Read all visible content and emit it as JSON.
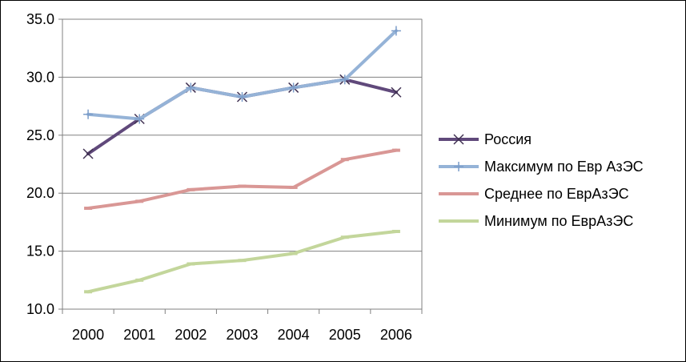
{
  "chart_data": {
    "type": "line",
    "title": "",
    "xlabel": "",
    "ylabel": "",
    "categories": [
      "2000",
      "2001",
      "2002",
      "2003",
      "2004",
      "2005",
      "2006"
    ],
    "ylim": [
      10,
      35
    ],
    "yticks": [
      "10.0",
      "15.0",
      "20.0",
      "25.0",
      "30.0",
      "35.0"
    ],
    "grid": true,
    "legend_position": "right",
    "series": [
      {
        "name": "Россия",
        "values": [
          23.4,
          26.4,
          29.1,
          28.3,
          29.1,
          29.8,
          28.7
        ],
        "color": "#60497b",
        "marker": "x"
      },
      {
        "name": "Максимум по Евр АзЭС",
        "values": [
          26.8,
          26.4,
          29.1,
          28.3,
          29.1,
          29.8,
          34.0
        ],
        "color": "#95b3d7",
        "marker": "plus"
      },
      {
        "name": "Среднее по ЕврАзЭС",
        "values": [
          18.7,
          19.3,
          20.3,
          20.6,
          20.5,
          22.9,
          23.7
        ],
        "color": "#d99795",
        "marker": "dash"
      },
      {
        "name": "Минимум по ЕврАзЭС",
        "values": [
          11.5,
          12.5,
          13.9,
          14.2,
          14.8,
          16.2,
          16.7
        ],
        "color": "#c3d69b",
        "marker": "dash"
      }
    ]
  }
}
